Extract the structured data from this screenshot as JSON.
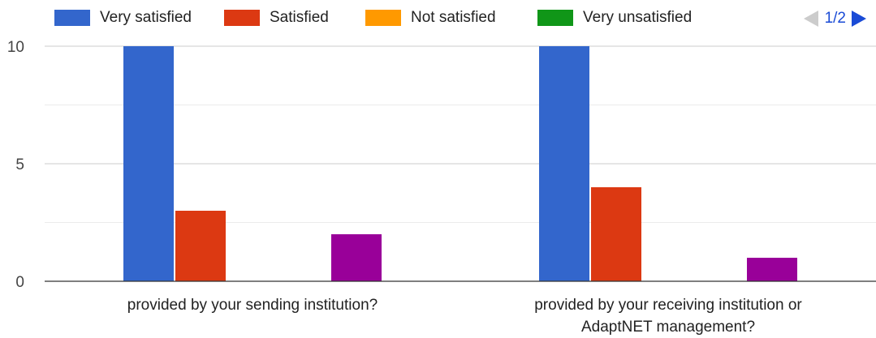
{
  "legend": {
    "items": [
      {
        "label": "Very satisfied",
        "color": "#3366cc"
      },
      {
        "label": "Satisfied",
        "color": "#dc3912"
      },
      {
        "label": "Not satisfied",
        "color": "#ff9900"
      },
      {
        "label": "Very unsatisfied",
        "color": "#109618"
      }
    ]
  },
  "pager": {
    "text": "1/2",
    "prev_icon": "triangle-left-icon",
    "next_icon": "triangle-right-icon"
  },
  "chart_data": {
    "type": "bar",
    "title": "",
    "xlabel": "",
    "ylabel": "",
    "categories": [
      [
        "provided by your sending institution?"
      ],
      [
        "provided by your receiving institution or",
        "AdaptNET management?"
      ]
    ],
    "series": [
      {
        "name": "Very satisfied",
        "color": "#3366cc",
        "values": [
          10,
          10
        ]
      },
      {
        "name": "Satisfied",
        "color": "#dc3912",
        "values": [
          3,
          4
        ]
      },
      {
        "name": "Not satisfied",
        "color": "#ff9900",
        "values": [
          0,
          0
        ]
      },
      {
        "name": "Very unsatisfied",
        "color": "#109618",
        "values": [
          0,
          0
        ]
      },
      {
        "color": "#990099",
        "values": [
          2,
          1
        ]
      }
    ],
    "ylim": [
      0,
      10
    ],
    "yticks": [
      0,
      5,
      10
    ],
    "grid": true,
    "legend_position": "top"
  }
}
